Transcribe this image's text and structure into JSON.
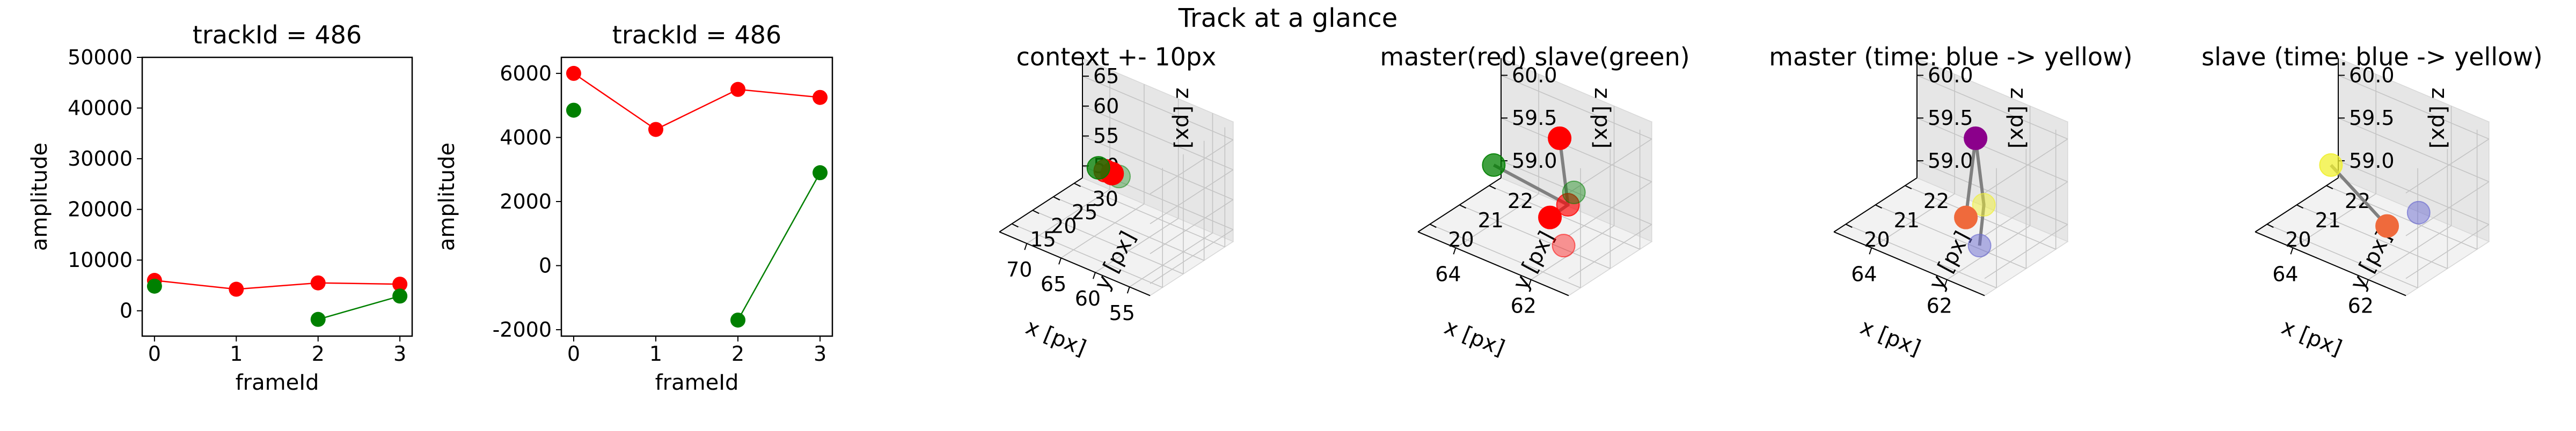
{
  "suptitle": "Track at a glance",
  "colors": {
    "master": "#ff0000",
    "slave": "#008000",
    "line": "#808080",
    "axis": "#000000"
  },
  "chart_data": [
    {
      "type": "line",
      "title": "trackId = 486",
      "xlabel": "frameId",
      "ylabel": "amplitude",
      "xlim": [
        -0.15,
        3.15
      ],
      "ylim": [
        -5000,
        50000
      ],
      "xticks": [
        0,
        1,
        2,
        3
      ],
      "yticks": [
        0,
        10000,
        20000,
        30000,
        40000,
        50000
      ],
      "series": [
        {
          "color": "#ff0000",
          "x": [
            0,
            1,
            2,
            3
          ],
          "values": [
            6000,
            4250,
            5500,
            5250
          ]
        },
        {
          "color": "#008000",
          "x": [
            0,
            2,
            3
          ],
          "values": [
            4850,
            -1700,
            2900
          ],
          "connect_from": 1
        }
      ]
    },
    {
      "type": "line",
      "title": "trackId = 486",
      "xlabel": "frameId",
      "ylabel": "amplitude",
      "xlim": [
        -0.15,
        3.15
      ],
      "ylim": [
        -2200,
        6500
      ],
      "xticks": [
        0,
        1,
        2,
        3
      ],
      "yticks": [
        -2000,
        0,
        2000,
        4000,
        6000
      ],
      "series": [
        {
          "color": "#ff0000",
          "x": [
            0,
            1,
            2,
            3
          ],
          "values": [
            6000,
            4250,
            5500,
            5250
          ]
        },
        {
          "color": "#008000",
          "x": [
            0,
            2,
            3
          ],
          "values": [
            4850,
            -1700,
            2900
          ],
          "connect_from": 1
        }
      ]
    },
    {
      "type": "scatter",
      "title": "context +- 10px",
      "xlabel": "x [px]",
      "ylabel": "y [px]",
      "zlabel": "z [px]",
      "xlim": [
        52,
        74
      ],
      "ylim": [
        12,
        32
      ],
      "zlim": [
        48,
        68
      ],
      "xticks": [
        55,
        60,
        65,
        70
      ],
      "yticks": [
        15,
        20,
        25,
        30
      ],
      "zticks": [
        50,
        55,
        60,
        65
      ],
      "points": [
        {
          "x": 62,
          "y": 21,
          "z": 59,
          "color": "#008000",
          "opacity": 0.35
        },
        {
          "x": 63,
          "y": 21,
          "z": 59,
          "color": "#ff0000",
          "opacity": 1
        },
        {
          "x": 64,
          "y": 21,
          "z": 59,
          "color": "#ff0000",
          "opacity": 0.8
        },
        {
          "x": 65,
          "y": 21,
          "z": 59,
          "color": "#008000",
          "opacity": 0.75
        }
      ]
    },
    {
      "type": "scatter",
      "title": "master(red) slave(green)",
      "xlabel": "x [px]",
      "ylabel": "y [px]",
      "zlabel": "z [px]",
      "xlim": [
        61,
        65
      ],
      "ylim": [
        19.6,
        22.4
      ],
      "zlim": [
        58.8,
        60.2
      ],
      "xticks": [
        62,
        64
      ],
      "yticks": [
        20,
        21,
        22
      ],
      "zticks": [
        59.0,
        59.5,
        60.0
      ],
      "points": [
        {
          "x": 62.5,
          "y": 21.2,
          "z": 60.0,
          "color": "#ff0000",
          "opacity": 1
        },
        {
          "x": 62.2,
          "y": 21.1,
          "z": 59.3,
          "color": "#ff0000",
          "opacity": 0.65
        },
        {
          "x": 62.6,
          "y": 21.0,
          "z": 59.1,
          "color": "#ff0000",
          "opacity": 1
        },
        {
          "x": 62.0,
          "y": 20.7,
          "z": 58.95,
          "color": "#ff0000",
          "opacity": 0.4
        },
        {
          "x": 62.2,
          "y": 21.3,
          "z": 59.4,
          "color": "#008000",
          "opacity": 0.4
        },
        {
          "x": 64.8,
          "y": 21.9,
          "z": 59.1,
          "color": "#008000",
          "opacity": 0.75
        }
      ],
      "lines": [
        {
          "x": [
            62.5,
            62.2,
            62.6
          ],
          "y": [
            21.2,
            21.1,
            21.0
          ],
          "z": [
            60.0,
            59.3,
            59.1
          ]
        },
        {
          "x": [
            62.2,
            64.8
          ],
          "y": [
            21.1,
            21.9
          ],
          "z": [
            59.3,
            59.1
          ]
        }
      ]
    },
    {
      "type": "scatter",
      "title": "master (time: blue -> yellow)",
      "xlabel": "x [px]",
      "ylabel": "y [px]",
      "zlabel": "z [px]",
      "xlim": [
        61,
        65
      ],
      "ylim": [
        19.6,
        22.4
      ],
      "zlim": [
        58.8,
        60.2
      ],
      "xticks": [
        62,
        64
      ],
      "yticks": [
        20,
        21,
        22
      ],
      "zticks": [
        59.0,
        59.5,
        60.0
      ],
      "points": [
        {
          "x": 62.5,
          "y": 21.2,
          "z": 60.0,
          "color": "#8b008b",
          "opacity": 1
        },
        {
          "x": 62.2,
          "y": 21.1,
          "z": 59.3,
          "color": "#f0f032",
          "opacity": 0.5
        },
        {
          "x": 62.6,
          "y": 21.0,
          "z": 59.1,
          "color": "#ef6a3c",
          "opacity": 1
        },
        {
          "x": 62.0,
          "y": 20.7,
          "z": 58.95,
          "color": "#6a6ad0",
          "opacity": 0.5
        }
      ],
      "lines": [
        {
          "x": [
            62.0,
            62.2,
            62.5,
            62.6
          ],
          "y": [
            20.7,
            21.1,
            21.2,
            21.0
          ],
          "z": [
            58.95,
            59.3,
            60.0,
            59.1
          ]
        }
      ]
    },
    {
      "type": "scatter",
      "title": "slave (time: blue -> yellow)",
      "xlabel": "x [px]",
      "ylabel": "y [px]",
      "zlabel": "z [px]",
      "xlim": [
        61,
        65
      ],
      "ylim": [
        19.6,
        22.4
      ],
      "zlim": [
        58.8,
        60.2
      ],
      "xticks": [
        62,
        64
      ],
      "yticks": [
        20,
        21,
        22
      ],
      "zticks": [
        59.0,
        59.5,
        60.0
      ],
      "points": [
        {
          "x": 62.0,
          "y": 21.3,
          "z": 59.2,
          "color": "#6a6ad0",
          "opacity": 0.5
        },
        {
          "x": 62.6,
          "y": 21.0,
          "z": 59.0,
          "color": "#ef6a3c",
          "opacity": 1
        },
        {
          "x": 64.8,
          "y": 21.9,
          "z": 59.1,
          "color": "#f0f032",
          "opacity": 0.75
        }
      ],
      "lines": [
        {
          "x": [
            62.6,
            64.8
          ],
          "y": [
            21.0,
            21.9
          ],
          "z": [
            59.0,
            59.1
          ]
        }
      ]
    }
  ]
}
